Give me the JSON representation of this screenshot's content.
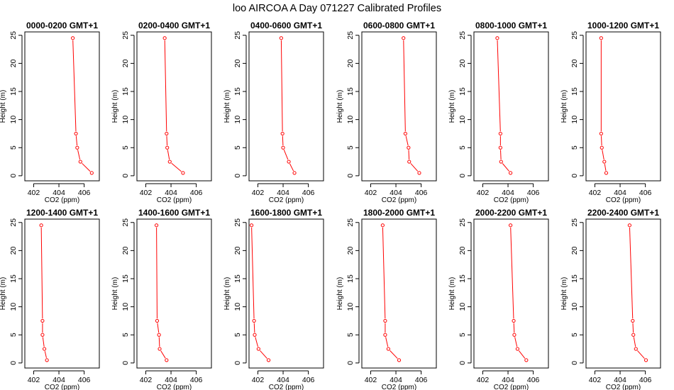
{
  "title": "loo AIRCOA A  Day 071227  Calibrated Profiles",
  "chart_data": {
    "type": "line",
    "xlabel": "CO2 (ppm)",
    "ylabel": "Height (m)",
    "xlim": [
      401.3,
      407.2
    ],
    "ylim": [
      -0.9,
      25.6
    ],
    "xticks": [
      402,
      404,
      406
    ],
    "yticks": [
      0,
      5,
      10,
      15,
      20,
      25
    ],
    "heights": [
      24.5,
      7.5,
      5,
      2.5,
      0.5
    ],
    "color": "#ff0000",
    "panels": [
      {
        "title": "0000-0200 GMT+1",
        "co2": [
          405.1,
          405.35,
          405.45,
          405.7,
          406.6
        ]
      },
      {
        "title": "0200-0400 GMT+1",
        "co2": [
          403.5,
          403.65,
          403.7,
          403.9,
          404.95
        ]
      },
      {
        "title": "0400-0600 GMT+1",
        "co2": [
          403.85,
          403.95,
          404.0,
          404.45,
          404.9
        ]
      },
      {
        "title": "0600-0800 GMT+1",
        "co2": [
          404.6,
          404.75,
          405.0,
          405.05,
          405.85
        ]
      },
      {
        "title": "0800-1000 GMT+1",
        "co2": [
          403.15,
          403.4,
          403.4,
          403.45,
          404.2
        ]
      },
      {
        "title": "1000-1200 GMT+1",
        "co2": [
          402.5,
          402.5,
          402.55,
          402.75,
          402.9
        ]
      },
      {
        "title": "1200-1400 GMT+1",
        "co2": [
          402.6,
          402.7,
          402.7,
          402.85,
          403.05
        ]
      },
      {
        "title": "1400-1600 GMT+1",
        "co2": [
          402.85,
          402.9,
          403.05,
          403.1,
          403.65
        ]
      },
      {
        "title": "1600-1800 GMT+1",
        "co2": [
          401.5,
          401.7,
          401.75,
          402.05,
          402.85
        ]
      },
      {
        "title": "1800-2000 GMT+1",
        "co2": [
          402.95,
          403.15,
          403.15,
          403.4,
          404.25
        ]
      },
      {
        "title": "2000-2200 GMT+1",
        "co2": [
          404.2,
          404.45,
          404.5,
          404.75,
          405.45
        ]
      },
      {
        "title": "2200-2400 GMT+1",
        "co2": [
          404.75,
          405.0,
          405.05,
          405.25,
          406.05
        ]
      }
    ]
  }
}
